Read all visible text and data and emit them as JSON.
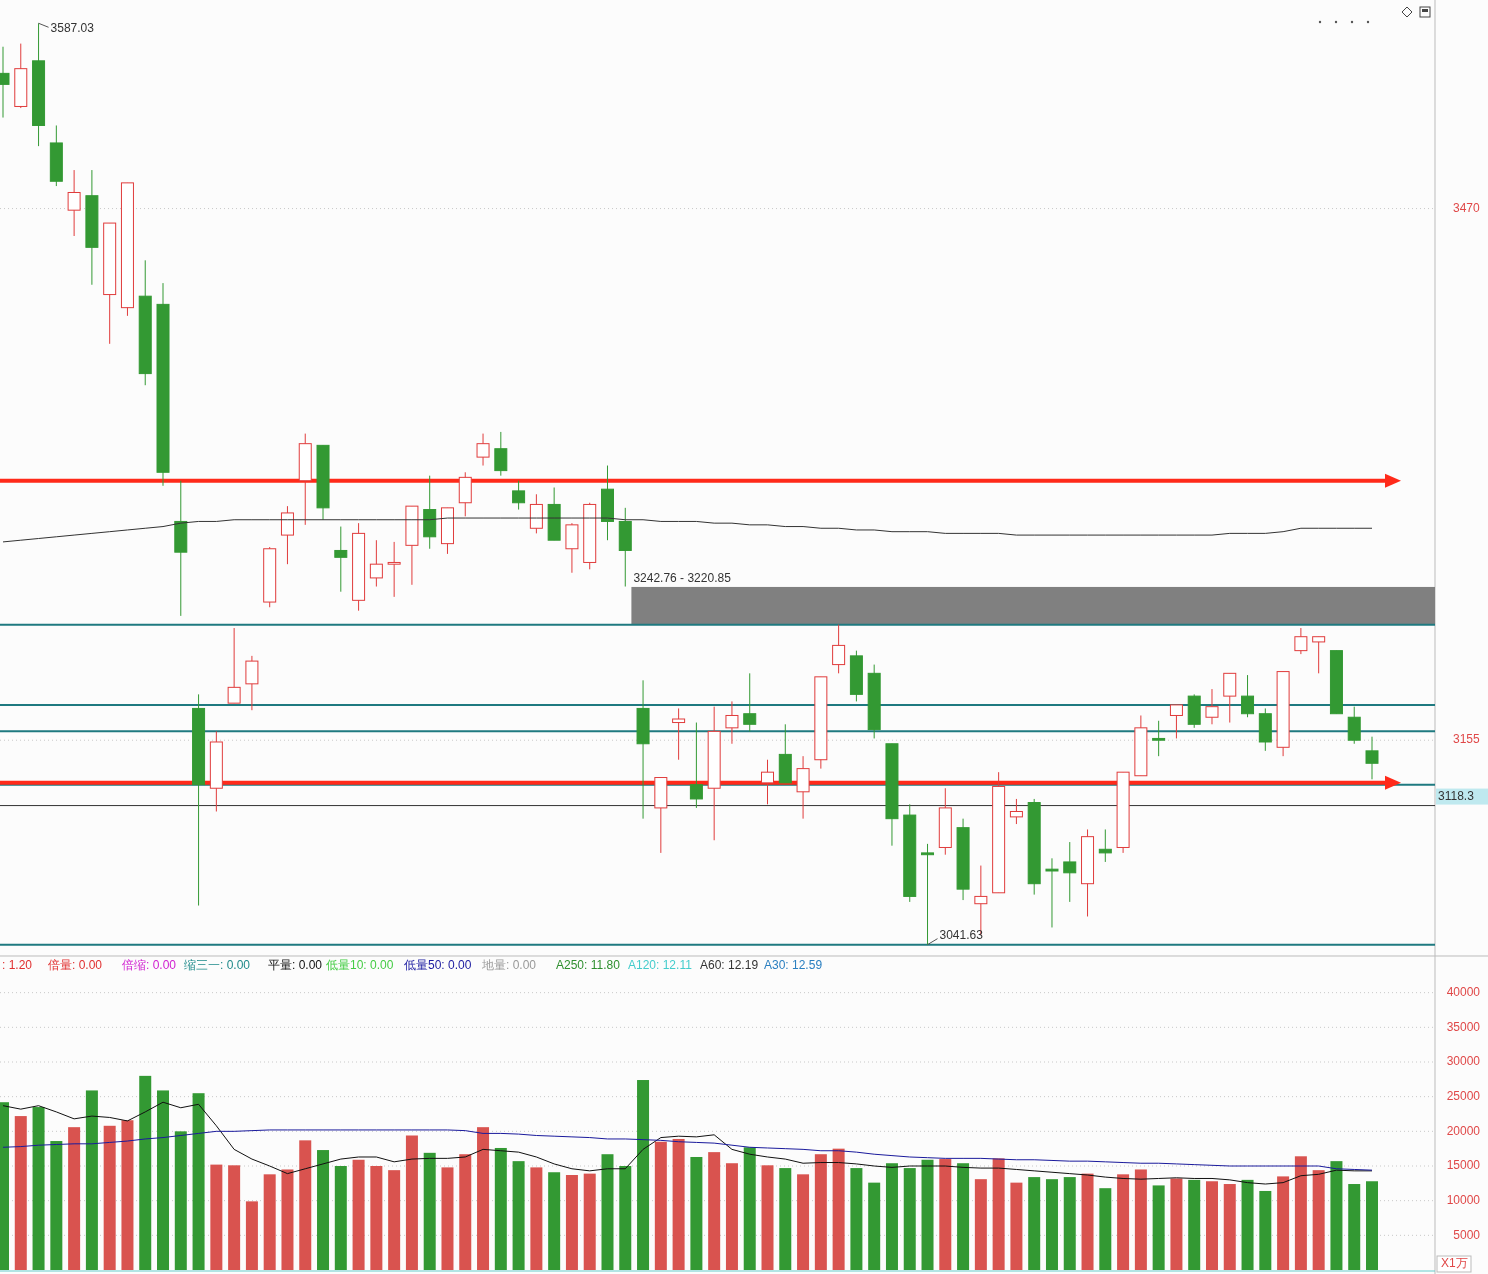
{
  "chart_data": [
    {
      "type": "candlestick",
      "log": true,
      "grid": "y",
      "tick_labels": "y",
      "ylim": [
        3036,
        3602
      ],
      "yticks": [
        3155,
        3470
      ],
      "categories": [
        null,
        null,
        null,
        null,
        null,
        null,
        null,
        null,
        null,
        null,
        null,
        null,
        null,
        null,
        null,
        null,
        null,
        null,
        null,
        null,
        null,
        null,
        null,
        null,
        null,
        null,
        null,
        null,
        null,
        null,
        null,
        null,
        null,
        null,
        null,
        null,
        null,
        null,
        null,
        null,
        null,
        null,
        null,
        null,
        null,
        null,
        null,
        null,
        null,
        null,
        null,
        null,
        null,
        null,
        null,
        null,
        null,
        null,
        null,
        null,
        null,
        null,
        null,
        null,
        null,
        null,
        null,
        null,
        null,
        null,
        null,
        null,
        null,
        null,
        null,
        null,
        null,
        null
      ],
      "ohlc": [
        [
          3555,
          3572,
          3527,
          3548
        ],
        [
          3534,
          3574,
          3533,
          3558
        ],
        [
          3563,
          3587.03,
          3509,
          3522
        ],
        [
          3511,
          3522,
          3484,
          3487
        ],
        [
          3469,
          3494,
          3453,
          3480
        ],
        [
          3478,
          3494,
          3423,
          3446
        ],
        [
          3417,
          3461,
          3387,
          3461
        ],
        [
          3409,
          3486,
          3404,
          3486
        ],
        [
          3416,
          3438,
          3362,
          3369
        ],
        [
          3411,
          3424,
          3302,
          3310
        ],
        [
          3281,
          3305,
          3226,
          3263
        ],
        [
          3173,
          3181,
          3063,
          3130
        ],
        [
          3128,
          3160,
          3115,
          3154
        ],
        [
          3176,
          3219,
          3176,
          3185
        ],
        [
          3187,
          3203,
          3172,
          3200
        ],
        [
          3234,
          3266,
          3231,
          3265
        ],
        [
          3273,
          3290,
          3256,
          3286
        ],
        [
          3305,
          3333,
          3279,
          3327
        ],
        [
          3326,
          3326,
          3282,
          3289
        ],
        [
          3264,
          3278,
          3240,
          3260
        ],
        [
          3235,
          3280,
          3229,
          3274
        ],
        [
          3248,
          3270,
          3243,
          3256
        ],
        [
          3256,
          3269,
          3237,
          3257
        ],
        [
          3267,
          3290,
          3244,
          3290
        ],
        [
          3288,
          3308,
          3265,
          3272
        ],
        [
          3268,
          3289,
          3262,
          3289
        ],
        [
          3292,
          3310,
          3284,
          3307
        ],
        [
          3319,
          3333,
          3314,
          3327
        ],
        [
          3324,
          3334,
          3308,
          3311
        ],
        [
          3299,
          3305,
          3288,
          3292
        ],
        [
          3277,
          3297,
          3274,
          3291
        ],
        [
          3291,
          3301,
          3270,
          3270
        ],
        [
          3265,
          3280,
          3251,
          3279
        ],
        [
          3257,
          3292,
          3253,
          3291
        ],
        [
          3300,
          3314,
          3270,
          3281
        ],
        [
          3281,
          3289,
          3243,
          3264
        ],
        [
          3173,
          3189,
          3111,
          3153
        ],
        [
          3117,
          3134,
          3092,
          3134
        ],
        [
          3165,
          3173,
          3144,
          3167
        ],
        [
          3130,
          3165,
          3117,
          3122
        ],
        [
          3128,
          3174,
          3099,
          3160
        ],
        [
          3162,
          3177,
          3153,
          3169
        ],
        [
          3170,
          3193,
          3160,
          3164
        ],
        [
          3131,
          3144,
          3119,
          3137
        ],
        [
          3147,
          3164,
          3131,
          3131
        ],
        [
          3126,
          3146,
          3111,
          3139
        ],
        [
          3144,
          3191,
          3139,
          3191
        ],
        [
          3198,
          3221,
          3193,
          3209
        ],
        [
          3203,
          3206,
          3177,
          3181
        ],
        [
          3193,
          3198,
          3156,
          3161
        ],
        [
          3153,
          3153,
          3096,
          3111
        ],
        [
          3113,
          3119,
          3065,
          3068
        ],
        [
          3092,
          3097,
          3041.63,
          3091
        ],
        [
          3095,
          3128,
          3091,
          3117
        ],
        [
          3106,
          3111,
          3066,
          3072
        ],
        [
          3064,
          3085,
          3047,
          3068
        ],
        [
          3070,
          3137,
          3070,
          3129
        ],
        [
          3112,
          3122,
          3108,
          3115
        ],
        [
          3120,
          3122,
          3069,
          3075
        ],
        [
          3083,
          3089,
          3051,
          3082
        ],
        [
          3087,
          3098,
          3065,
          3081
        ],
        [
          3075,
          3105,
          3057,
          3101
        ],
        [
          3094,
          3105,
          3087,
          3092
        ],
        [
          3095,
          3137,
          3092,
          3137
        ],
        [
          3135,
          3169,
          3135,
          3162
        ],
        [
          3156,
          3166,
          3146,
          3155
        ],
        [
          3169,
          3175,
          3156,
          3175
        ],
        [
          3180,
          3181,
          3162,
          3164
        ],
        [
          3168,
          3184,
          3164,
          3174
        ],
        [
          3180,
          3193,
          3165,
          3193
        ],
        [
          3180,
          3192,
          3168,
          3170
        ],
        [
          3170,
          3173,
          3149,
          3154
        ],
        [
          3151,
          3194,
          3146,
          3194
        ],
        [
          3206,
          3219,
          3204,
          3214
        ],
        [
          3211,
          3214,
          3193,
          3214
        ],
        [
          3206,
          3206,
          3170,
          3170
        ],
        [
          3168,
          3174,
          3153,
          3155
        ],
        [
          3149,
          3157,
          3133,
          3142
        ]
      ],
      "series": [
        {
          "type": "line",
          "color": "#333333",
          "values": [
            3269,
            3270,
            3271,
            3272,
            3273,
            3274,
            3275,
            3276,
            3277,
            3278,
            3280,
            3281,
            3281,
            3282,
            3282,
            3282,
            3282,
            3282,
            3282,
            3282,
            3282,
            3282,
            3282,
            3282,
            3282,
            3283,
            3283,
            3283,
            3283,
            3283,
            3283,
            3283,
            3283,
            3283,
            3283,
            3282,
            3282,
            3281,
            3281,
            3281,
            3280,
            3280,
            3279,
            3279,
            3278,
            3278,
            3277,
            3277,
            3276,
            3276,
            3275,
            3275,
            3275,
            3274,
            3274,
            3274,
            3274,
            3273,
            3273,
            3273,
            3273,
            3273,
            3273,
            3273,
            3273,
            3273,
            3273,
            3273,
            3273,
            3274,
            3274,
            3274,
            3275,
            3277,
            3277,
            3277,
            3277,
            3277
          ]
        }
      ],
      "bands": [
        {
          "axis": "y",
          "from": 3220.85,
          "to": 3242.76,
          "label": "3242.76 - 3220.85",
          "color": "#808080"
        }
      ],
      "ref_lines": [
        {
          "axis": "y",
          "value": 3220.85,
          "color": "#1f7a80"
        },
        {
          "axis": "y",
          "value": 3175,
          "color": "#1f7a80"
        },
        {
          "axis": "y",
          "value": 3160,
          "color": "#1f7a80"
        },
        {
          "axis": "y",
          "value": 3130,
          "color": "#1f7a80"
        },
        {
          "axis": "y",
          "value": 3041.63,
          "color": "#1f7a80"
        },
        {
          "axis": "y",
          "value": 3118.3,
          "label": "3118.3",
          "color": "#333333"
        },
        {
          "axis": "y",
          "value": 3305,
          "color": "#ff2a1a",
          "line_style": "solid"
        },
        {
          "axis": "y",
          "value": 3131,
          "color": "#ff2a1a",
          "line_style": "solid"
        }
      ],
      "annotations": [
        "3587.03",
        "3041.63"
      ]
    },
    {
      "type": "bar",
      "grid": "y",
      "tick_labels": "y",
      "ylim": [
        0,
        45000
      ],
      "yticks": [
        5000,
        10000,
        15000,
        20000,
        25000,
        30000,
        35000,
        40000
      ],
      "ylabel": "X1万",
      "categories": [
        null,
        null,
        null,
        null,
        null,
        null,
        null,
        null,
        null,
        null,
        null,
        null,
        null,
        null,
        null,
        null,
        null,
        null,
        null,
        null,
        null,
        null,
        null,
        null,
        null,
        null,
        null,
        null,
        null,
        null,
        null,
        null,
        null,
        null,
        null,
        null,
        null,
        null,
        null,
        null,
        null,
        null,
        null,
        null,
        null,
        null,
        null,
        null,
        null,
        null,
        null,
        null,
        null,
        null,
        null,
        null,
        null,
        null,
        null,
        null,
        null,
        null,
        null,
        null,
        null,
        null,
        null,
        null,
        null,
        null,
        null,
        null,
        null,
        null,
        null,
        null,
        null,
        null
      ],
      "series": [
        {
          "type": "bar",
          "values": [
            24200,
            22200,
            23500,
            18600,
            20600,
            25900,
            20800,
            21600,
            28000,
            25900,
            20000,
            25500,
            15200,
            15100,
            9900,
            13800,
            14500,
            18700,
            17300,
            15000,
            15900,
            15000,
            14400,
            19400,
            16900,
            14800,
            16700,
            20600,
            17600,
            15700,
            14800,
            14100,
            13700,
            13900,
            16700,
            15000,
            27400,
            18500,
            18900,
            16300,
            17000,
            15400,
            17700,
            15100,
            14700,
            13800,
            16700,
            17500,
            14700,
            12600,
            15400,
            14700,
            15900,
            16000,
            15400,
            13100,
            16100,
            12600,
            13400,
            13100,
            13400,
            13900,
            11800,
            13800,
            14500,
            12200,
            13200,
            13000,
            12800,
            12400,
            13000,
            11400,
            13500,
            16400,
            14400,
            15700,
            12400,
            12800
          ],
          "colors": [
            "#339933",
            "#d9534f",
            "#339933",
            "#339933",
            "#d9534f",
            "#339933",
            "#d9534f",
            "#d9534f",
            "#339933",
            "#339933",
            "#339933",
            "#339933",
            "#d9534f",
            "#d9534f",
            "#d9534f",
            "#d9534f",
            "#d9534f",
            "#d9534f",
            "#339933",
            "#339933",
            "#d9534f",
            "#d9534f",
            "#d9534f",
            "#d9534f",
            "#339933",
            "#d9534f",
            "#d9534f",
            "#d9534f",
            "#339933",
            "#339933",
            "#d9534f",
            "#339933",
            "#d9534f",
            "#d9534f",
            "#339933",
            "#339933",
            "#339933",
            "#d9534f",
            "#d9534f",
            "#339933",
            "#d9534f",
            "#d9534f",
            "#339933",
            "#d9534f",
            "#339933",
            "#d9534f",
            "#d9534f",
            "#d9534f",
            "#339933",
            "#339933",
            "#339933",
            "#339933",
            "#339933",
            "#d9534f",
            "#339933",
            "#d9534f",
            "#d9534f",
            "#d9534f",
            "#339933",
            "#339933",
            "#339933",
            "#d9534f",
            "#339933",
            "#d9534f",
            "#d9534f",
            "#339933",
            "#d9534f",
            "#339933",
            "#d9534f",
            "#d9534f",
            "#339933",
            "#339933",
            "#d9534f",
            "#d9534f",
            "#d9534f",
            "#339933",
            "#339933",
            "#339933"
          ]
        },
        {
          "type": "line",
          "color": "#111111",
          "values": [
            23700,
            23200,
            23700,
            22800,
            21800,
            22200,
            22000,
            21500,
            22800,
            24200,
            23400,
            23900,
            20800,
            17400,
            16000,
            15000,
            13900,
            14600,
            15300,
            16000,
            16300,
            16300,
            15600,
            16000,
            16100,
            16100,
            16300,
            17400,
            17200,
            17000,
            16300,
            15300,
            14600,
            14300,
            14600,
            14600,
            17400,
            19100,
            19300,
            19200,
            19500,
            17400,
            16700,
            16300,
            16000,
            15400,
            15500,
            15500,
            15300,
            15000,
            14800,
            15000,
            15000,
            15000,
            14800,
            14700,
            14700,
            14500,
            14300,
            14100,
            13900,
            13700,
            13400,
            13200,
            13100,
            13200,
            13300,
            13200,
            13200,
            13000,
            12600,
            12400,
            12600,
            13600,
            13800,
            14400,
            14300,
            14300
          ]
        },
        {
          "type": "line",
          "color": "#1a1a9c",
          "values": [
            17700,
            17800,
            18000,
            18100,
            18200,
            18200,
            18400,
            18600,
            18900,
            19100,
            19400,
            19700,
            20000,
            20000,
            20100,
            20200,
            20200,
            20200,
            20200,
            20200,
            20200,
            20200,
            20200,
            20200,
            20200,
            20200,
            20100,
            19700,
            19700,
            19600,
            19400,
            19300,
            19200,
            19100,
            18900,
            18900,
            18800,
            18700,
            18500,
            18400,
            18300,
            18000,
            17700,
            17600,
            17500,
            17400,
            17200,
            17200,
            17000,
            16700,
            16500,
            16300,
            16200,
            16100,
            16100,
            16100,
            16000,
            15900,
            15900,
            15800,
            15700,
            15700,
            15600,
            15500,
            15400,
            15400,
            15300,
            15200,
            15100,
            15000,
            15000,
            15000,
            15000,
            15000,
            15000,
            14600,
            14500,
            14400
          ]
        }
      ],
      "annotations": [
        ": 1.20",
        "倍量: 0.00",
        "倍缩: 0.00",
        "缩三一: 0.00",
        "平量: 0.00",
        "低量10: 0.00",
        "低量50: 0.00",
        "地量: 0.00",
        "A250: 11.80",
        "A120: 12.11",
        "A60: 12.19",
        "A30: 12.59"
      ]
    }
  ]
}
